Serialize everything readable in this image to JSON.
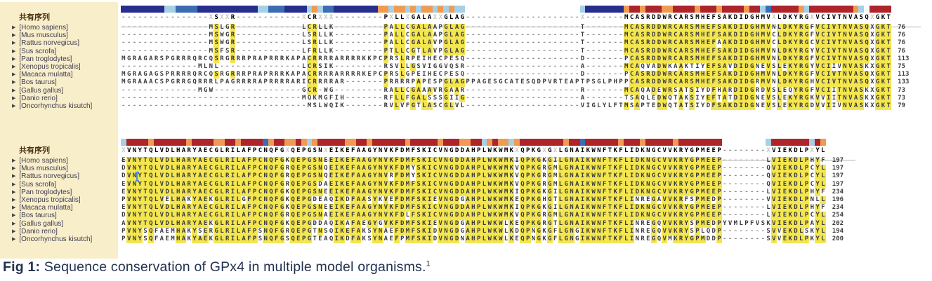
{
  "sidebar": {
    "consensus_label": "共有序列",
    "species": [
      "[Homo sapiens]",
      "[Mus musculus]",
      "[Rattus norvegicus]",
      "[Sus scrofa]",
      "[Pan troglodytes]",
      "[Xenopus tropicalis]",
      "[Macaca mulatta]",
      "[Bos taurus]",
      "[Gallus gallus]",
      "[Danio rerio]",
      "[Oncorhynchus kisutch]"
    ]
  },
  "blocks": [
    {
      "consensus": "----------------XSXXR------------XCRXXX---------PXLLXGALAXXGLAG---------------------X-------MCASRDDWRCARSMHEFSAKDIDGHMVXLDKYRGXVCIVTNVASQXGKT",
      "bar_segments": "n8 l2 b4 n11 l2 b3 n4 l1 o1 l1 b2 n8 o2 l1 o2 l1 o1 l1 o2 l1 o1 l1 o1 l2 w21 l1 n7 o1 r2 o1 r3 o2 r4 o1 r3 o1 r4 o1 r2 l1 b1 r5 o1 l1 r8 o1 l1 w1 r4",
      "rows": [
        {
          "seq": "----------------MSLGR------------LCRLLK---------PALLCGALAAPGLAG---------------------T-------MCASRDDWRCARSMHEFSAKDIDGHMVNLDKYRGFVCIVTNVASQXGKT",
          "num": "76"
        },
        {
          "seq": "----------------MSWGR------------LSRLLK---------PALLCGALAAPGLAG---------------------T-------MCASRDDWRCARSMHEFSAKDIDGHMVCLDKYRGFVCIVTNVASQXGKT",
          "num": "76"
        },
        {
          "seq": "----------------MSWGR------------LSRLLK---------PALLCGALAVPGLAG---------------------T-------MCASRDDWRCARSMHEFAAKDIDGHMVCLDKYRGCVCIVTNVASQXGKT",
          "num": "76"
        },
        {
          "seq": "----------------MSFSR------------LFRLLK---------PTLLCGTLAVPGLAG---------------------T-------MCASRDDWRCARSMHEFSAKDIDGHMVNLDKYRGYVCIVTNVASQXGKT",
          "num": "76"
        },
        {
          "seq": "MGRAGARSPGRRRQRCQSRGRRRPRAPRRRKAPACRRRRARRRRKKPCPRSLRPEIHECPESQ---------------------D-------PCASRDDWRCARSMHEFSAKDIDGHMVNLDKYRGFVCIVTNVASQXGKT",
          "num": "113"
        },
        {
          "seq": "--------------MLNL---------------LCRSIK---------RSVLLGSVIGGVQSR---------------------A-------MCAQVADWKAAKTIYEFSAVDIDGNEVSLEKYRGYVCIIVNVASKXGKT",
          "num": "75"
        },
        {
          "seq": "MGRAGAGSPRRRRQRCQSRGRRRPRAPRRRKAPACRRRRARRRRKEPCPRSLGPEIHECPESQ---------------------D-------PCASRDDWRCARSMHEFSAKDIDGHMVNLDKYRGFVCIVTNVASQXGKT",
          "num": "113"
        },
        {
          "seq": "MGRAAACSPGRRGQRRRLPAGRRRRAPRRRRARICRRRRAR-------PRRRRPAPESPGLAGPPAGESGCATESQDPVRTEAPTPSGLPHPPCASRDDWRCARSMHEFSAKDIDGRMVNLDKYRGHVCIVTNVASQXGKT",
          "num": "133"
        },
        {
          "seq": "--------------MGW----------------GCR-WG---------RALLCGAAAVRGAAR---------------------R-------MCAQADEWRSATSIYDFHARDIDGRDVSLEQYRGFVCIITNVASKXGKT",
          "num": "73"
        },
        {
          "seq": "---------------------------------MQKMGFIH-------RFLLFGALSSSGIIG---------------------A-------TSAQLEDWQTAKSIYEFTATDIDGNEVSLEKYRGKVVIITNVASKXGKT",
          "num": "73"
        },
        {
          "seq": "----------------------------------MSLWQIK-------RVLVFGTLASCGLVL---------------------VIGLYLFTMSAPTEDWQTATSIYDFSAKDIDGNEVSLEKYRGDVVIIVNVASKXGKT",
          "num": "79"
        }
      ]
    },
    {
      "consensus": "XVNYTQLVDLHARYAECGLRILAFPCNQFGXQEPGSNXEIKEFAAGYNVKFDMFSKICVNGDDAHPLWKWMKXQPKGXGXLGNAIKWNFTKFLIDKNGCVVKRYGPMEEP--------XVIEKDLPXYL",
      "bar_segments": "l1 r4 o1 r6 o1 r4 o2 r2 o1 r4 b1 o1 r2 o2 r1 o1 l1 o1 r5 o2 r2 o1 r6 o1 r5 o1 r3 o2 r2 l1 o1 r1 o2 l1 o1 r8 o1 r2 b1 r6 o1 r3 o1 r5 o1 r8 w8 l1 r7 l1 r1 o1",
      "rows": [
        {
          "seq": "EVNYTQLVDLHARYAECGLRILAFPCNQFGKQEPGSNEEIKEFAAGYNVKFDMFSKICVNGDDAHPLWKWMKIQPKGKGILGNAIKWNFTKFLIDKNGCVVKRYGPMEEP--------LVIEKDLPHYF",
          "num": "197"
        },
        {
          "seq": "DVNYTQLVDLHARYAECGLRILAFPCNQFGRQEPGSNQEIKEFAAGYNVKFDMYSKICVNGDDAHPLWKWMKVQPKGRGMLGNAIKWNFTKFLIDKNGCVVKRYGPMEEP--------QVIEKDLPCYL",
          "num": "197"
        },
        {
          "seq": "DVNYTQLVDLHARYAECGLRILAFPCNQFGRQEPGSNQEIKEFAAGYNVRFDMYSKICVNGDDAHPLWKWMKVQPKGRGMLGNAIKWNFTKFLIDKNGCVVKRYGPMEEP--------QVIEKDLPCYL",
          "num": "197"
        },
        {
          "seq": "EVNYTQLVDLHARYAECGLRILAFPCNQFGRQEPGSDAEIKEFAAGYNVKFDMFSKICVNGDDAHPLWKWMKVQPKGRGMLGNAIKWNFTKFLIDKNGCVVKRYGPMEEP--------QVIEKDLPCYL",
          "num": "197"
        },
        {
          "seq": "EVNYTQLVDLHARYAECGLRILAFPCNQFGKQEPGSNEEIKEFAAGYNVKFDMFSKICVNGDDAHPLWKWMKIQPKGKGILGNAIKWNFTKFLIDKNGCVVKRYGPMEEP--------LVIEKDLPHYF",
          "num": "234"
        },
        {
          "seq": "PVNYTQLVELHAKYAEKGLRILGFPCNQFGKQEPGDEAQIKDFAASYKVEFDMFSKIEVNGDGAHPLWKWMKEQPKGHGTLGNAIKWNFTKFLINREGAVVKRFSPMEDP--------VVIEKDLPNLL",
          "num": "196"
        },
        {
          "seq": "EVNYTQLVDLHARYAECGLRILAFPCNQFGKQEPGSNEEIKEFAAGYNVKFDMFSKICVNGDDAHPLWKWMKIQPKGKGILGNAIKWNFTKFLIDKNGCVVKRYGPMEEP--------LVIEKDLPHYF",
          "num": "234"
        },
        {
          "seq": "DVNYTQLVDLHARYAECGLRILAFPCNQFGRQEPGSNAEIKEFAAGYNVKFDLFSKICVNGDDAHPLWKWMKVQPKGRGMLGNAIKWNFTKFLIDKNGCVVKRYGPMEEP--------LVIEKDLPCYL",
          "num": "254"
        },
        {
          "seq": "AVNYTQLVDLHARYAEKGLRILAFPCNQFGKQEPGDDAQIKAFAEGYGVKFDMFSKIEVNGDGAHPLWKWLKEQPKGRGTLGNAIKWNFTKFLINREGQVVKRYSPMEDPYVMLPFVSKVIEKDLPAYL",
          "num": "202"
        },
        {
          "seq": "PVNYSQFAEMHAKYSERGLRILAFPSNQFGRQEPGTNSQIKEFAKSYNAEFDMFSKIDVNGDGAHPLWKWLKDQPNGKGFLGNGIKWNFTKFLINREGQVVKRYSPLQDP--------SVVEKDLSKYL",
          "num": "194"
        },
        {
          "seq": "PVNYSQFAEMHAKYAEKGLRILAFPSNQFGSQEPGTEAQIKDFAKSYNAEFPMFSKIDVNGDNAHPLWKWLKEQPNGKGFLGNGIKWNFTKFLINREGQVMKRYGPMDDP--------SVVEKDLPKYL",
          "num": "200"
        }
      ]
    }
  ],
  "cursor": {
    "block_index": 1,
    "row_index": 2,
    "col": 3
  },
  "caption": {
    "prefix": "Fig 1:",
    "text": " Sequence conservation of GPx4 in multiple model organisms.",
    "superscript": "1"
  },
  "colors": {
    "sidebar_bg": "#f9eeca",
    "highlight": "#f4e64f",
    "cursor": "#4d8fd1",
    "bar": {
      "n": "#272e8e",
      "b": "#3d6cb3",
      "l": "#a6d0e6",
      "o": "#ef9b51",
      "r": "#ae2429"
    }
  }
}
